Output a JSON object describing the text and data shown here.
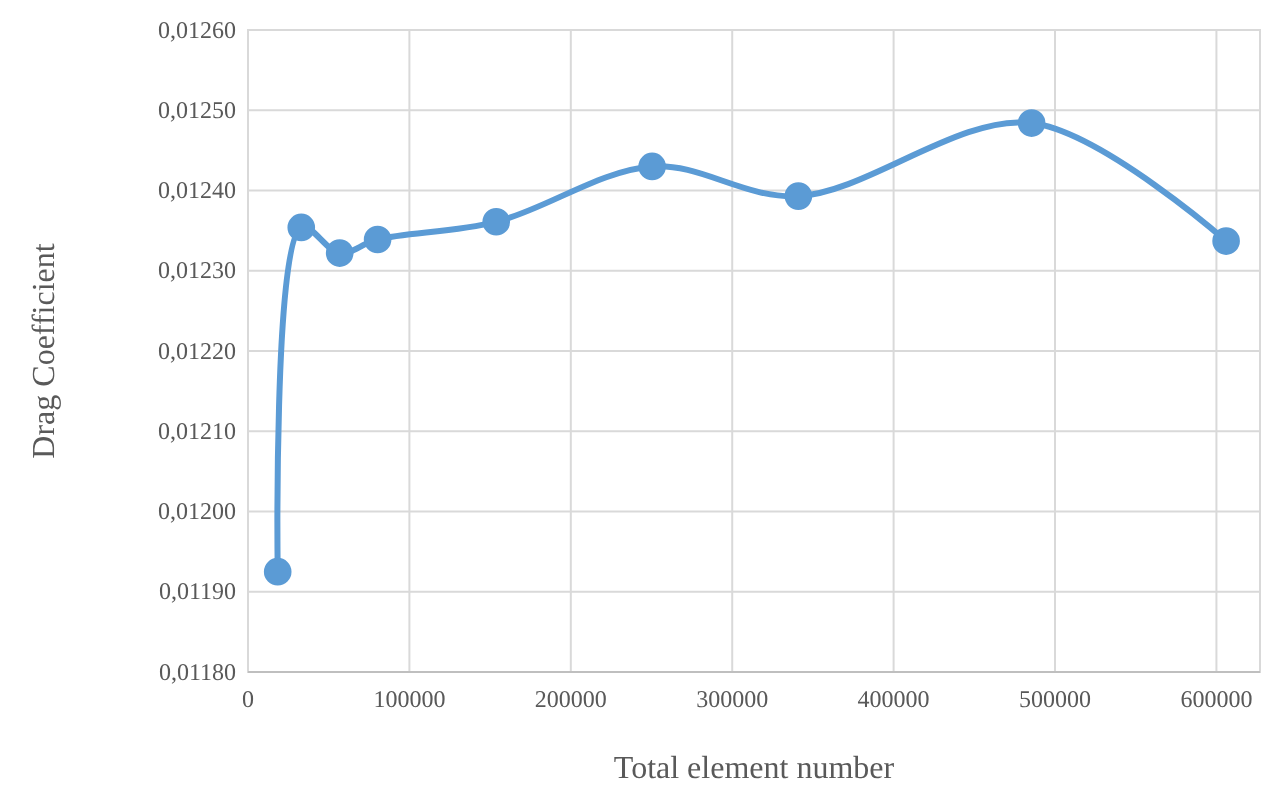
{
  "chart_data": {
    "type": "line",
    "xlabel": "Total element number",
    "ylabel": "Drag Coefficient",
    "x": [
      18400,
      33000,
      56800,
      80300,
      153800,
      250400,
      341000,
      485500,
      606000
    ],
    "series": [
      {
        "color": "#5b9bd5",
        "values": [
          0.011925,
          0.012354,
          0.012322,
          0.012339,
          0.012361,
          0.01243,
          0.012393,
          0.012484,
          0.012337
        ]
      }
    ],
    "xlim": [
      0,
      627000
    ],
    "xticks": [
      0,
      100000,
      200000,
      300000,
      400000,
      500000,
      600000
    ],
    "ylim": [
      0.0118,
      0.0126
    ],
    "yticks": [
      {
        "value": 0.0118,
        "label": "0,01180"
      },
      {
        "value": 0.0119,
        "label": "0,01190"
      },
      {
        "value": 0.012,
        "label": "0,01200"
      },
      {
        "value": 0.0121,
        "label": "0,01210"
      },
      {
        "value": 0.0122,
        "label": "0,01220"
      },
      {
        "value": 0.0123,
        "label": "0,01230"
      },
      {
        "value": 0.0124,
        "label": "0,01240"
      },
      {
        "value": 0.0125,
        "label": "0,01250"
      },
      {
        "value": 0.0126,
        "label": "0,01260"
      }
    ],
    "grid": true,
    "marker": "circle",
    "line_style": "solid"
  }
}
